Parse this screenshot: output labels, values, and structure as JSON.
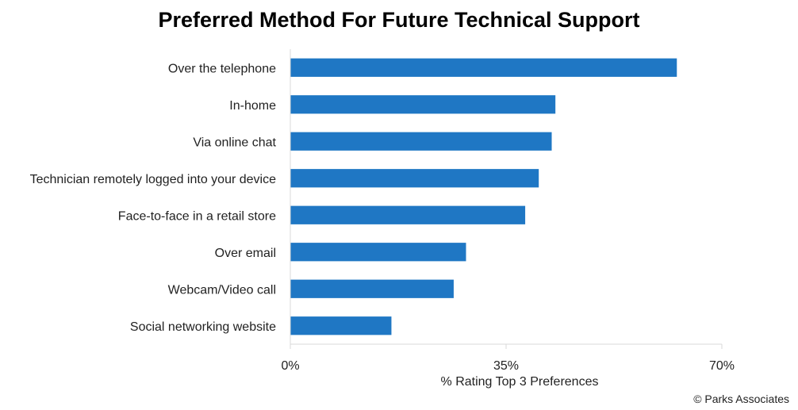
{
  "chart_data": {
    "type": "bar",
    "orientation": "horizontal",
    "title": "Preferred Method For Future Technical Support",
    "xlabel": "% Rating Top 3 Preferences",
    "ylabel": "",
    "categories": [
      "Over the telephone",
      "In-home",
      "Via online chat",
      "Technician remotely logged into your device",
      "Face-to-face in a retail store",
      "Over email",
      "Webcam/Video call",
      "Social networking website"
    ],
    "values": [
      62.7,
      43.0,
      42.4,
      40.3,
      38.1,
      28.5,
      26.5,
      16.4
    ],
    "xlim": [
      0,
      70
    ],
    "xticks": [
      0,
      35,
      70
    ],
    "xtick_labels": [
      "0%",
      "35%",
      "70%"
    ],
    "bar_color": "#1f77c4",
    "grid": false,
    "legend": "none",
    "source_note": "© Parks Associates"
  }
}
